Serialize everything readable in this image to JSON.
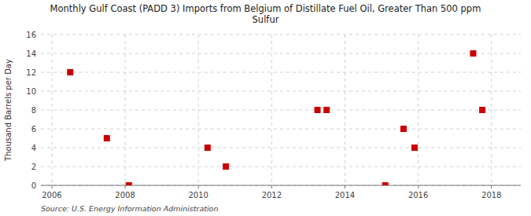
{
  "chart_data": {
    "type": "scatter",
    "title": "Monthly Gulf Coast (PADD 3) Imports from Belgium of Distillate Fuel Oil, Greater Than 500 ppm\nSulfur",
    "y_label": "Thousand Barrels per Day",
    "source": "Source: U.S. Energy Information Administration",
    "x": [
      2006.5,
      2007.5,
      2008.1,
      2010.25,
      2010.75,
      2013.25,
      2013.5,
      2015.1,
      2015.6,
      2015.9,
      2017.5,
      2017.75
    ],
    "values": [
      12,
      5,
      0,
      4,
      2,
      8,
      8,
      0,
      6,
      4,
      14,
      8
    ],
    "color": "#cc0000",
    "marker": "square",
    "grid": true,
    "xlim": [
      2005.7,
      2018.8
    ],
    "ylim": [
      0,
      16
    ],
    "xticks": [
      2006,
      2008,
      2010,
      2012,
      2014,
      2016,
      2018
    ],
    "yticks": [
      0,
      2,
      4,
      6,
      8,
      10,
      12,
      14,
      16
    ]
  }
}
